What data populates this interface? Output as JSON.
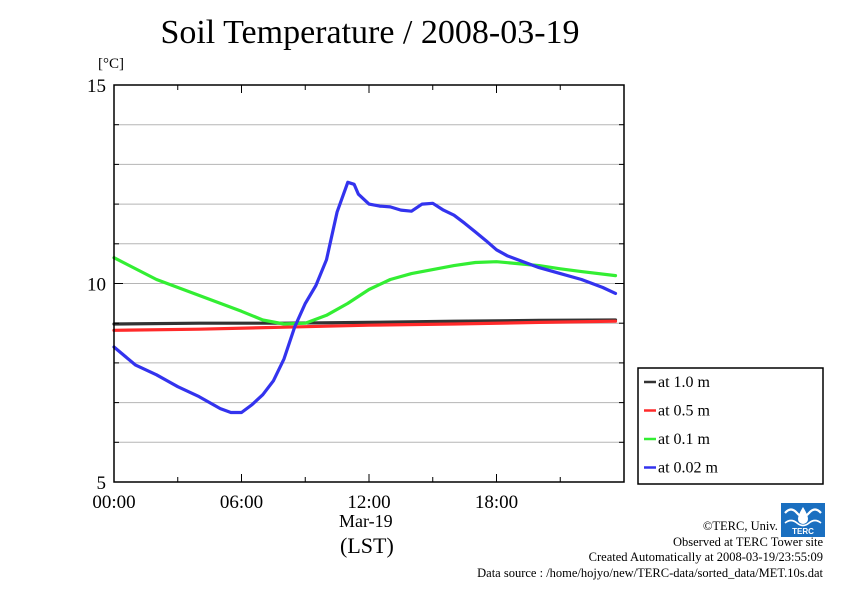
{
  "title": "Soil Temperature / 2008-03-19",
  "unit_label": "[°C]",
  "date_label": "Mar-19",
  "time_label": "(LST)",
  "footer": {
    "copyright": "©TERC, Univ. Tsukuba",
    "observed": "Observed at TERC Tower site",
    "created": "Created Automatically at 2008-03-19/23:55:09",
    "source": "Data source : /home/hojyo/new/TERC-data/sorted_data/MET.10s.dat"
  },
  "logo_text": "TERC",
  "chart_data": {
    "type": "line",
    "title": "Soil Temperature / 2008-03-19",
    "ylabel": "[°C]",
    "xlabel": "Mar-19 (LST)",
    "xlim": [
      0,
      24
    ],
    "ylim": [
      5,
      15
    ],
    "x_ticks": [
      {
        "value": 0,
        "label": "00:00"
      },
      {
        "value": 6,
        "label": "06:00"
      },
      {
        "value": 12,
        "label": "12:00"
      },
      {
        "value": 18,
        "label": "18:00"
      }
    ],
    "y_ticks": [
      {
        "value": 5,
        "label": "5"
      },
      {
        "value": 10,
        "label": "10"
      },
      {
        "value": 15,
        "label": "15"
      }
    ],
    "grid": true,
    "legend_position": "right",
    "series": [
      {
        "name": "at 1.0 m",
        "color": "#333333",
        "points": [
          [
            0,
            8.98
          ],
          [
            4,
            9.0
          ],
          [
            8,
            9.0
          ],
          [
            12,
            9.02
          ],
          [
            16,
            9.05
          ],
          [
            20,
            9.07
          ],
          [
            23.6,
            9.08
          ]
        ]
      },
      {
        "name": "at 0.5 m",
        "color": "#ff2a2a",
        "points": [
          [
            0,
            8.82
          ],
          [
            4,
            8.85
          ],
          [
            8,
            8.9
          ],
          [
            12,
            8.95
          ],
          [
            16,
            8.98
          ],
          [
            20,
            9.02
          ],
          [
            23.6,
            9.05
          ]
        ]
      },
      {
        "name": "at 0.1 m",
        "color": "#33ee33",
        "points": [
          [
            0,
            10.65
          ],
          [
            2,
            10.1
          ],
          [
            4,
            9.7
          ],
          [
            6,
            9.3
          ],
          [
            7,
            9.08
          ],
          [
            8,
            8.98
          ],
          [
            9,
            9.0
          ],
          [
            10,
            9.2
          ],
          [
            11,
            9.5
          ],
          [
            12,
            9.85
          ],
          [
            13,
            10.1
          ],
          [
            14,
            10.25
          ],
          [
            15,
            10.35
          ],
          [
            16,
            10.45
          ],
          [
            17,
            10.53
          ],
          [
            18,
            10.55
          ],
          [
            19,
            10.5
          ],
          [
            20,
            10.45
          ],
          [
            21,
            10.37
          ],
          [
            22,
            10.3
          ],
          [
            23.6,
            10.2
          ]
        ]
      },
      {
        "name": "at 0.02 m",
        "color": "#3333ee",
        "points": [
          [
            0,
            8.4
          ],
          [
            1,
            7.95
          ],
          [
            2,
            7.7
          ],
          [
            3,
            7.4
          ],
          [
            4,
            7.15
          ],
          [
            5,
            6.85
          ],
          [
            5.5,
            6.75
          ],
          [
            6,
            6.75
          ],
          [
            6.5,
            6.95
          ],
          [
            7,
            7.2
          ],
          [
            7.5,
            7.55
          ],
          [
            8,
            8.1
          ],
          [
            8.5,
            8.9
          ],
          [
            9,
            9.5
          ],
          [
            9.5,
            9.95
          ],
          [
            10,
            10.6
          ],
          [
            10.5,
            11.8
          ],
          [
            11,
            12.55
          ],
          [
            11.3,
            12.5
          ],
          [
            11.5,
            12.25
          ],
          [
            12,
            12.0
          ],
          [
            12.5,
            11.95
          ],
          [
            13,
            11.93
          ],
          [
            13.5,
            11.85
          ],
          [
            14,
            11.82
          ],
          [
            14.5,
            12.0
          ],
          [
            15,
            12.02
          ],
          [
            15.5,
            11.85
          ],
          [
            16,
            11.72
          ],
          [
            16.5,
            11.52
          ],
          [
            17,
            11.3
          ],
          [
            17.5,
            11.08
          ],
          [
            18,
            10.85
          ],
          [
            18.5,
            10.7
          ],
          [
            19,
            10.6
          ],
          [
            20,
            10.4
          ],
          [
            21,
            10.25
          ],
          [
            22,
            10.1
          ],
          [
            23,
            9.9
          ],
          [
            23.6,
            9.75
          ]
        ]
      }
    ]
  }
}
